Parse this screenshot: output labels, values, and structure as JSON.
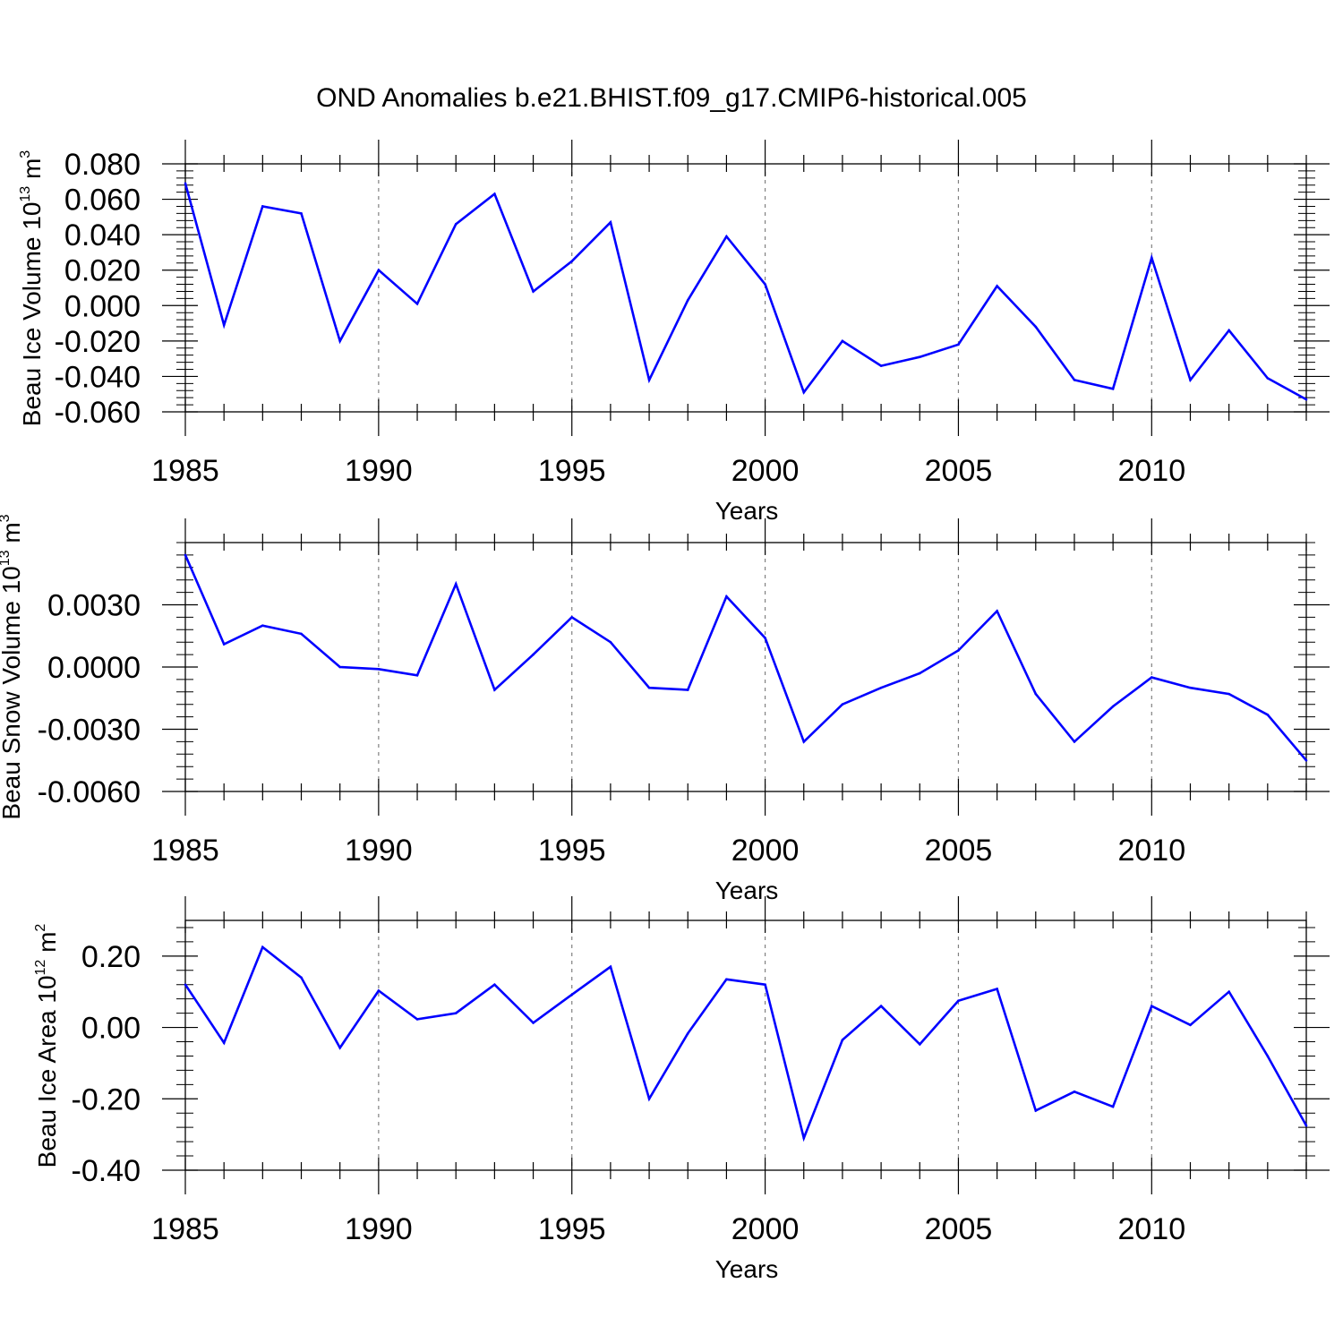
{
  "figure": {
    "title": "OND Anomalies b.e21.BHIST.f09_g17.CMIP6-historical.005"
  },
  "chart_data": [
    {
      "type": "line",
      "title": "OND Anomalies b.e21.BHIST.f09_g17.CMIP6-historical.005",
      "xlabel": "Years",
      "ylabel": {
        "base": "Beau Ice Volume 10",
        "exp": "13",
        "unit": " m",
        "unit_exp": "3"
      },
      "xlim": [
        1985,
        2014
      ],
      "ylim": [
        -0.06,
        0.08
      ],
      "xticks": [
        1985,
        1990,
        1995,
        2000,
        2005,
        2010
      ],
      "xtick_labels": [
        "1985",
        "1990",
        "1995",
        "2000",
        "2005",
        "2010"
      ],
      "yticks": [
        -0.06,
        -0.04,
        -0.02,
        0.0,
        0.02,
        0.04,
        0.06,
        0.08
      ],
      "ytick_labels": [
        "-0.060",
        "-0.040",
        "-0.020",
        "0.000",
        "0.020",
        "0.040",
        "0.060",
        "0.080"
      ],
      "grid": "vertical dashed at major x ticks",
      "line_color": "#0000ff",
      "x": [
        1985,
        1986,
        1987,
        1988,
        1989,
        1990,
        1991,
        1992,
        1993,
        1994,
        1995,
        1996,
        1997,
        1998,
        1999,
        2000,
        2001,
        2002,
        2003,
        2004,
        2005,
        2006,
        2007,
        2008,
        2009,
        2010,
        2011,
        2012,
        2013,
        2014
      ],
      "series": [
        {
          "values": [
            0.069,
            -0.011,
            0.056,
            0.052,
            -0.02,
            0.02,
            0.001,
            0.046,
            0.063,
            0.008,
            0.025,
            0.047,
            -0.042,
            0.003,
            0.039,
            0.012,
            -0.049,
            -0.02,
            -0.034,
            -0.029,
            -0.022,
            0.011,
            -0.012,
            -0.042,
            -0.047,
            0.027,
            -0.042,
            -0.014,
            -0.041,
            -0.053
          ]
        }
      ]
    },
    {
      "type": "line",
      "xlabel": "Years",
      "ylabel": {
        "base": "Beau Snow Volume 10",
        "exp": "13",
        "unit": " m",
        "unit_exp": "3"
      },
      "xlim": [
        1985,
        2014
      ],
      "ylim": [
        -0.006,
        0.006
      ],
      "xticks": [
        1985,
        1990,
        1995,
        2000,
        2005,
        2010
      ],
      "xtick_labels": [
        "1985",
        "1990",
        "1995",
        "2000",
        "2005",
        "2010"
      ],
      "yticks": [
        -0.006,
        -0.003,
        0.0,
        0.003
      ],
      "ytick_labels": [
        "-0.0060",
        "-0.0030",
        "0.0000",
        "0.0030"
      ],
      "grid": "vertical dashed at major x ticks",
      "line_color": "#0000ff",
      "x": [
        1985,
        1986,
        1987,
        1988,
        1989,
        1990,
        1991,
        1992,
        1993,
        1994,
        1995,
        1996,
        1997,
        1998,
        1999,
        2000,
        2001,
        2002,
        2003,
        2004,
        2005,
        2006,
        2007,
        2008,
        2009,
        2010,
        2011,
        2012,
        2013,
        2014
      ],
      "series": [
        {
          "values": [
            0.0054,
            0.0011,
            0.002,
            0.0016,
            0.0,
            -0.0001,
            -0.0004,
            0.004,
            -0.0011,
            0.0006,
            0.0024,
            0.0012,
            -0.001,
            -0.0011,
            0.0034,
            0.0014,
            -0.0036,
            -0.0018,
            -0.001,
            -0.0003,
            0.0008,
            0.0027,
            -0.0013,
            -0.0036,
            -0.0019,
            -0.0005,
            -0.001,
            -0.0013,
            -0.0023,
            -0.0045
          ]
        }
      ]
    },
    {
      "type": "line",
      "xlabel": "Years",
      "ylabel": {
        "base": "Beau Ice Area 10",
        "exp": "12",
        "unit": " m",
        "unit_exp": "2"
      },
      "xlim": [
        1985,
        2014
      ],
      "ylim": [
        -0.4,
        0.3
      ],
      "xticks": [
        1985,
        1990,
        1995,
        2000,
        2005,
        2010
      ],
      "xtick_labels": [
        "1985",
        "1990",
        "1995",
        "2000",
        "2005",
        "2010"
      ],
      "yticks": [
        -0.4,
        -0.2,
        0.0,
        0.2
      ],
      "ytick_labels": [
        "-0.40",
        "-0.20",
        "0.00",
        "0.20"
      ],
      "grid": "vertical dashed at major x ticks",
      "line_color": "#0000ff",
      "x": [
        1985,
        1986,
        1987,
        1988,
        1989,
        1990,
        1991,
        1992,
        1993,
        1994,
        1995,
        1996,
        1997,
        1998,
        1999,
        2000,
        2001,
        2002,
        2003,
        2004,
        2005,
        2006,
        2007,
        2008,
        2009,
        2010,
        2011,
        2012,
        2013,
        2014
      ],
      "series": [
        {
          "values": [
            0.12,
            -0.043,
            0.225,
            0.14,
            -0.057,
            0.103,
            0.023,
            0.04,
            0.12,
            0.013,
            0.092,
            0.17,
            -0.2,
            -0.017,
            0.135,
            0.12,
            -0.31,
            -0.035,
            0.06,
            -0.047,
            0.075,
            0.108,
            -0.233,
            -0.18,
            -0.222,
            0.06,
            0.007,
            0.1,
            -0.08,
            -0.275
          ]
        }
      ]
    }
  ]
}
